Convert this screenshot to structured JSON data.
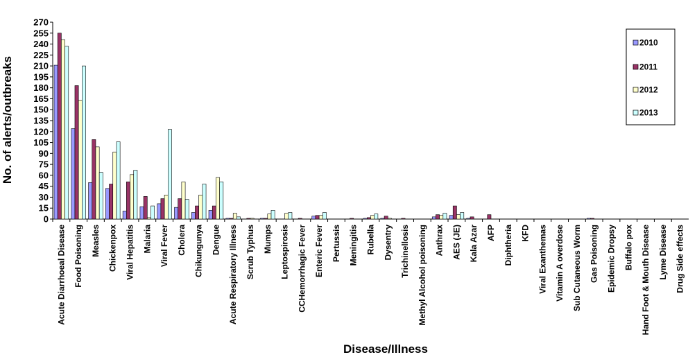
{
  "chart_data": {
    "type": "bar",
    "xlabel": "Disease/Illness",
    "ylabel": "No. of alerts/outbreaks",
    "ylim": [
      0,
      270
    ],
    "yticks": [
      0,
      15,
      30,
      45,
      60,
      75,
      90,
      105,
      120,
      135,
      150,
      165,
      180,
      195,
      210,
      225,
      240,
      255,
      270
    ],
    "grid": false,
    "legend_position": "top-right",
    "categories": [
      "Acute Diarrhoeal Disease",
      "Food Poisoning",
      "Measles",
      "Chickenpox",
      "Viral Hepatitis",
      "Malaria",
      "Viral Fever",
      "Cholera",
      "Chikungunya",
      "Dengue",
      "Acute Respiratory Illness",
      "Scrub Typhus",
      "Mumps",
      "Leptospirosis",
      "CCHemorrhagic Fever",
      "Enteric Fever",
      "Pertussis",
      "Meningitis",
      "Rubella",
      "Dysentry",
      "Trichinellosis",
      "Methyl Alcohol poisoning",
      "Anthrax",
      "AES (JE)",
      "Kala Azar",
      "AFP",
      "Diphtheria",
      "KFD",
      "Viral Exanthemas",
      "Vitamin A overdose",
      "Sub Cutaneous Worm",
      "Gas Poisoning",
      "Epidemic Dropsy",
      "Buffalo pox",
      "Hand Foot & Mouth Disease",
      "Lyme Disease",
      "Drug Side effects"
    ],
    "series": [
      {
        "name": "2010",
        "color": "#9999ff",
        "values": [
          211,
          124,
          50,
          42,
          11,
          17,
          21,
          16,
          9,
          12,
          1,
          0,
          1,
          0,
          0,
          4,
          0,
          0,
          1,
          1,
          0,
          0,
          3,
          5,
          1,
          0,
          0,
          0,
          0,
          0,
          0,
          1,
          0,
          0,
          0,
          0,
          0
        ]
      },
      {
        "name": "2011",
        "color": "#993366",
        "values": [
          255,
          183,
          109,
          48,
          51,
          31,
          28,
          28,
          18,
          18,
          1,
          1,
          1,
          0,
          1,
          5,
          0,
          1,
          2,
          4,
          1,
          0,
          6,
          18,
          3,
          6,
          0,
          0,
          0,
          0,
          0,
          1,
          0,
          0,
          0,
          0,
          0
        ]
      },
      {
        "name": "2012",
        "color": "#ffffcc",
        "values": [
          246,
          163,
          99,
          92,
          61,
          2,
          33,
          51,
          33,
          57,
          8,
          1,
          7,
          8,
          0,
          5,
          0,
          0,
          5,
          1,
          0,
          0,
          5,
          6,
          0,
          0,
          0,
          0,
          0,
          0,
          0,
          0,
          0,
          0,
          0,
          0,
          0
        ]
      },
      {
        "name": "2013",
        "color": "#ccffff",
        "values": [
          237,
          210,
          64,
          106,
          67,
          18,
          123,
          27,
          48,
          51,
          3,
          0,
          12,
          9,
          0,
          9,
          0,
          0,
          7,
          0,
          0,
          0,
          8,
          9,
          0,
          0,
          0,
          0,
          0,
          0,
          0,
          0,
          0,
          0,
          0,
          0,
          0
        ]
      }
    ]
  }
}
